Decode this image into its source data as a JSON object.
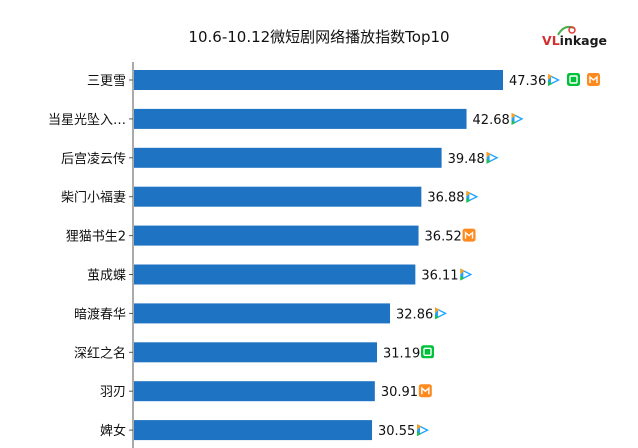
{
  "title": "10.6-10.12微短剧网络播放指数Top10",
  "logo": {
    "text_v": "V",
    "text_l": "L",
    "text_rest": "inkage"
  },
  "colors": {
    "bar": "#1f73c3",
    "axis": "#555555",
    "iqiyi": "#00c13a",
    "youku": "#1fa3ff",
    "mango": "#ff8a1f"
  },
  "chart_data": {
    "type": "bar",
    "orientation": "horizontal",
    "categories": [
      "三更雪",
      "当星光坠入…",
      "后宫凌云传",
      "柴门小福妻",
      "狸猫书生2",
      "茧成蝶",
      "暗渡春华",
      "深红之名",
      "羽刃",
      "婢女"
    ],
    "values": [
      47.36,
      42.68,
      39.48,
      36.88,
      36.52,
      36.11,
      32.86,
      31.19,
      30.91,
      30.55
    ],
    "labels": [
      "47.36",
      "42.68",
      "39.48",
      "36.88",
      "36.52",
      "36.11",
      "32.86",
      "31.19",
      "30.91",
      "30.55"
    ],
    "platforms": [
      [
        "tencent-video",
        "iqiyi",
        "mango-tv"
      ],
      [
        "tencent-video"
      ],
      [
        "tencent-video"
      ],
      [
        "tencent-video"
      ],
      [
        "mango-tv"
      ],
      [
        "tencent-video"
      ],
      [
        "tencent-video"
      ],
      [
        "iqiyi"
      ],
      [
        "mango-tv"
      ],
      [
        "tencent-video"
      ]
    ],
    "xlim": [
      0,
      47.36
    ],
    "grid": false,
    "legend": "none"
  }
}
